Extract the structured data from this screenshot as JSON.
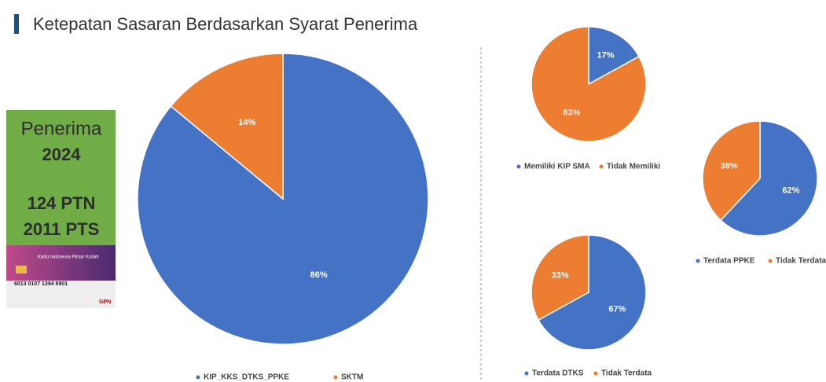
{
  "title": "Ketepatan Sasaran Berdasarkan Syarat Penerima",
  "panel": {
    "label": "Penerima",
    "year": "2024",
    "ptn": "124 PTN",
    "pts": "2011 PTS"
  },
  "card": {
    "name": "Kartu Indonesia Pintar Kuliah",
    "number": "6013 0107 1394 8801",
    "brand": "GPN"
  },
  "chart_data": [
    {
      "type": "pie",
      "categories": [
        "KIP_KKS_DTKS_PPKE",
        "SKTM"
      ],
      "values": [
        86,
        14
      ],
      "value_labels": [
        "86%",
        "14%"
      ],
      "colors": [
        "#4472c4",
        "#ed7d31"
      ]
    },
    {
      "type": "pie",
      "categories": [
        "Memiliki KIP SMA",
        "Tidak Memiliki"
      ],
      "values": [
        17,
        83
      ],
      "value_labels": [
        "17%",
        "83%"
      ],
      "colors": [
        "#4472c4",
        "#ed7d31"
      ]
    },
    {
      "type": "pie",
      "categories": [
        "Terdata PPKE",
        "Tidak Terdata"
      ],
      "values": [
        62,
        38
      ],
      "value_labels": [
        "62%",
        "38%"
      ],
      "colors": [
        "#4472c4",
        "#ed7d31"
      ]
    },
    {
      "type": "pie",
      "categories": [
        "Terdata DTKS",
        "Tidak Terdata"
      ],
      "values": [
        67,
        33
      ],
      "value_labels": [
        "67%",
        "33%"
      ],
      "colors": [
        "#4472c4",
        "#ed7d31"
      ]
    }
  ]
}
